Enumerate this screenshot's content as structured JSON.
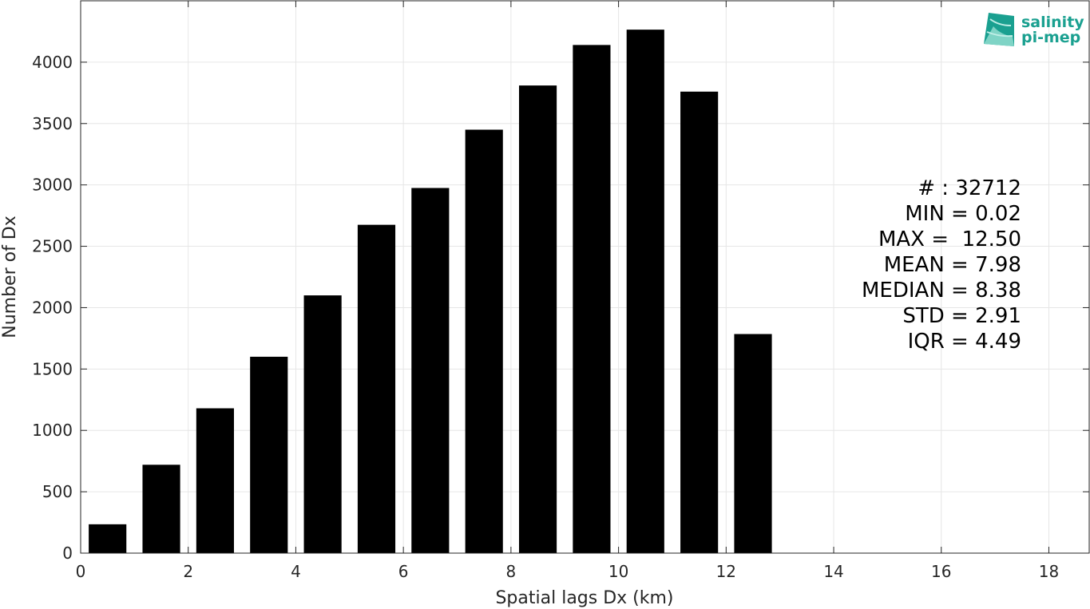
{
  "chart_data": {
    "type": "bar",
    "x": [
      0.5,
      1.5,
      2.5,
      3.5,
      4.5,
      5.5,
      6.5,
      7.5,
      8.5,
      9.5,
      10.5,
      11.5,
      12.5
    ],
    "values": [
      235,
      720,
      1180,
      1600,
      2100,
      2675,
      2975,
      3450,
      3810,
      4140,
      4265,
      3760,
      1785
    ],
    "title": "",
    "xlabel": "Spatial lags Dx (km)",
    "ylabel": "Number of Dx",
    "xlim": [
      0,
      18.75
    ],
    "ylim": [
      0,
      4500
    ],
    "xticks": [
      0,
      2,
      4,
      6,
      8,
      10,
      12,
      14,
      16,
      18
    ],
    "yticks": [
      0,
      500,
      1000,
      1500,
      2000,
      2500,
      3000,
      3500,
      4000
    ],
    "xtick_labels": [
      "0",
      "2",
      "4",
      "6",
      "8",
      "10",
      "12",
      "14",
      "16",
      "18"
    ],
    "ytick_labels": [
      "0",
      "500",
      "1000",
      "1500",
      "2000",
      "2500",
      "3000",
      "3500",
      "4000"
    ],
    "grid": true,
    "bar_color": "#000000",
    "annotations": [
      "# : 32712",
      "MIN = 0.02",
      "MAX =  12.50",
      "MEAN = 7.98",
      "MEDIAN = 8.38",
      "STD = 2.91",
      "IQR = 4.49"
    ]
  },
  "logo": {
    "line1": "salinity",
    "line2": "pi-mep",
    "color": "#1aa090"
  }
}
